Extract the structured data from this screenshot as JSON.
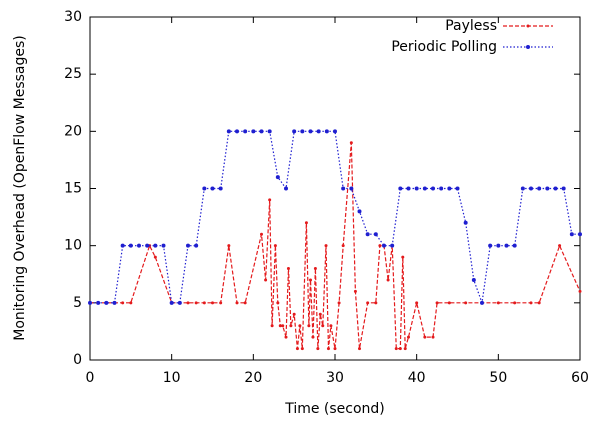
{
  "chart_data": {
    "type": "line",
    "xlabel": "Time (second)",
    "ylabel": "Monitoring Overhead (OpenFlow Messages)",
    "xlim": [
      0,
      60
    ],
    "ylim": [
      0,
      30
    ],
    "xticks": [
      0,
      10,
      20,
      30,
      40,
      50,
      60
    ],
    "yticks": [
      0,
      5,
      10,
      15,
      20,
      25,
      30
    ],
    "legend": "upper right",
    "series": [
      {
        "name": "Payless",
        "color": "#e41a1c",
        "dash": "dashed",
        "x": [
          0,
          1,
          2,
          3,
          4,
          5,
          7.3,
          8,
          10,
          11,
          12,
          13,
          14,
          15,
          16,
          17,
          18,
          19,
          21,
          21.5,
          22,
          22.3,
          22.7,
          23,
          23.3,
          23.6,
          24,
          24.3,
          24.6,
          25,
          25.4,
          25.7,
          26,
          26.5,
          26.8,
          27,
          27.3,
          27.6,
          27.9,
          28.2,
          28.5,
          28.9,
          29.2,
          29.5,
          30,
          30.5,
          31,
          32,
          32.5,
          33,
          34,
          35,
          35.5,
          36,
          36.5,
          37,
          37.5,
          38,
          38.3,
          38.6,
          39,
          40,
          41,
          42,
          42.5,
          44,
          46,
          48,
          50,
          52,
          54,
          55,
          57.5,
          60
        ],
        "values": [
          5,
          5,
          5,
          5,
          5,
          5,
          10,
          9,
          5,
          5,
          5,
          5,
          5,
          5,
          5,
          10,
          5,
          5,
          11,
          7,
          14,
          3,
          10,
          5,
          3,
          3,
          2,
          8,
          3,
          4,
          1,
          3,
          1,
          12,
          3,
          7,
          2,
          8,
          1,
          4,
          3,
          10,
          1,
          3,
          1,
          5,
          10,
          19,
          6,
          1,
          5,
          5,
          10,
          10,
          7,
          10,
          1,
          1,
          9,
          1,
          2,
          5,
          2,
          2,
          5,
          5,
          5,
          5,
          5,
          5,
          5,
          5,
          10,
          6
        ]
      },
      {
        "name": "Periodic Polling",
        "color": "#1f1fd0",
        "dash": "dotted",
        "x": [
          0,
          1,
          2,
          3,
          4,
          5,
          6,
          7,
          8,
          9,
          10,
          11,
          12,
          13,
          14,
          15,
          16,
          17,
          18,
          19,
          20,
          21,
          22,
          23,
          24,
          25,
          26,
          27,
          28,
          29,
          30,
          31,
          32,
          33,
          34,
          35,
          36,
          37,
          38,
          39,
          40,
          41,
          42,
          43,
          44,
          45,
          46,
          47,
          48,
          49,
          50,
          51,
          52,
          53,
          54,
          55,
          56,
          57,
          58,
          59,
          60
        ],
        "values": [
          5,
          5,
          5,
          5,
          10,
          10,
          10,
          10,
          10,
          10,
          5,
          5,
          10,
          10,
          15,
          15,
          15,
          20,
          20,
          20,
          20,
          20,
          20,
          16,
          15,
          20,
          20,
          20,
          20,
          20,
          20,
          15,
          15,
          13,
          11,
          11,
          10,
          10,
          15,
          15,
          15,
          15,
          15,
          15,
          15,
          15,
          12,
          7,
          5,
          10,
          10,
          10,
          10,
          15,
          15,
          15,
          15,
          15,
          15,
          11,
          11
        ]
      }
    ]
  }
}
